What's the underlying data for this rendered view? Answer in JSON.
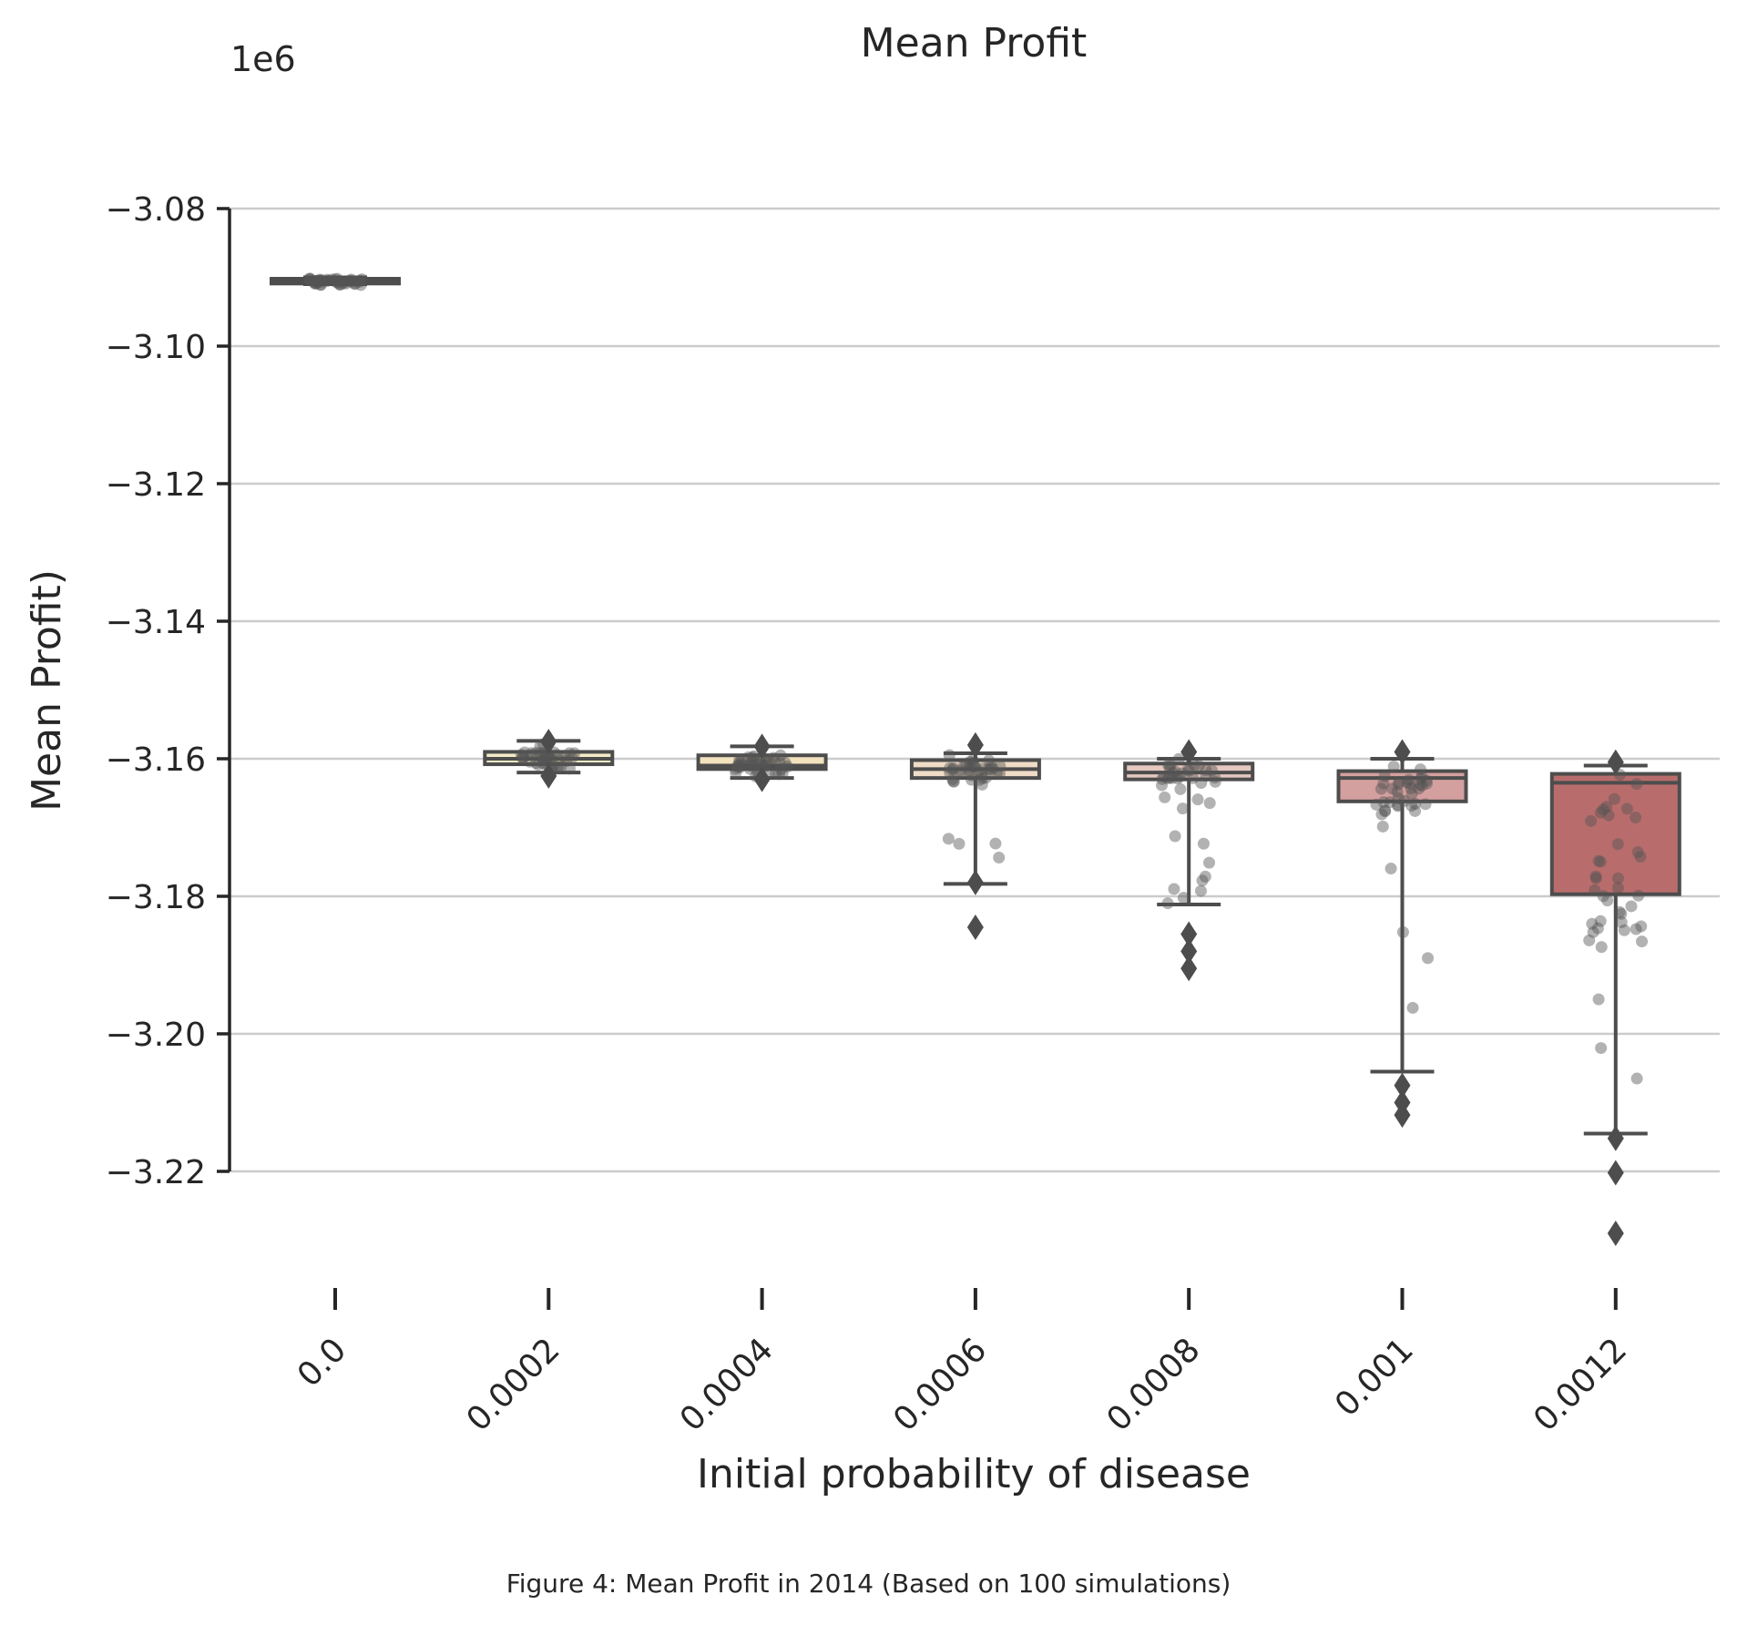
{
  "chart_data": {
    "type": "box",
    "title": "Mean Profit",
    "xlabel": "Initial probability of disease",
    "ylabel": "Mean Profit)",
    "offset_label": "1e6",
    "categories": [
      "0.0",
      "0.0002",
      "0.0004",
      "0.0006",
      "0.0008",
      "0.001",
      "0.0012"
    ],
    "yticks": [
      -3.08,
      -3.1,
      -3.12,
      -3.14,
      -3.16,
      -3.18,
      -3.2,
      -3.22
    ],
    "ytick_labels": [
      "−3.08",
      "−3.10",
      "−3.12",
      "−3.14",
      "−3.16",
      "−3.18",
      "−3.20",
      "−3.22"
    ],
    "ylim": [
      -3.2355,
      -3.063
    ],
    "grid": "horizontal",
    "scale_note": "values in units of 1e6",
    "series": [
      {
        "category": "0.0",
        "median": -3.0906,
        "q1": -3.0909,
        "q3": -3.0902,
        "whisker_low": -3.091,
        "whisker_high": -3.09,
        "outliers": [],
        "color": "#c5e5a8"
      },
      {
        "category": "0.0002",
        "median": -3.16,
        "q1": -3.1608,
        "q3": -3.159,
        "whisker_low": -3.162,
        "whisker_high": -3.1574,
        "outliers": [
          -3.1575,
          -3.1625
        ],
        "color": "#f3ecc6"
      },
      {
        "category": "0.0004",
        "median": -3.161,
        "q1": -3.1615,
        "q3": -3.1595,
        "whisker_low": -3.1628,
        "whisker_high": -3.1582,
        "outliers": [
          -3.1582,
          -3.163
        ],
        "color": "#f2e2bd"
      },
      {
        "category": "0.0006",
        "median": -3.1615,
        "q1": -3.1628,
        "q3": -3.1602,
        "whisker_low": -3.1782,
        "whisker_high": -3.1592,
        "outliers": [
          -3.178,
          -3.1845,
          -3.158
        ],
        "color": "#efdcc6"
      },
      {
        "category": "0.0008",
        "median": -3.162,
        "q1": -3.163,
        "q3": -3.1607,
        "whisker_low": -3.1812,
        "whisker_high": -3.16,
        "outliers": [
          -3.1855,
          -3.188,
          -3.1905,
          -3.159
        ],
        "color": "#e5c8bf"
      },
      {
        "category": "0.001",
        "median": -3.1628,
        "q1": -3.1662,
        "q3": -3.1618,
        "whisker_low": -3.2055,
        "whisker_high": -3.16,
        "outliers": [
          -3.2075,
          -3.21,
          -3.2118,
          -3.159
        ],
        "color": "#d4a09f"
      },
      {
        "category": "0.0012",
        "median": -3.1635,
        "q1": -3.1797,
        "q3": -3.1622,
        "whisker_low": -3.2145,
        "whisker_high": -3.161,
        "outliers": [
          -3.2152,
          -3.2202,
          -3.229,
          -3.1605
        ],
        "color": "#b86d6c"
      }
    ]
  },
  "caption": "Figure 4: Mean Profit in 2014 (Based on 100 simulations)"
}
